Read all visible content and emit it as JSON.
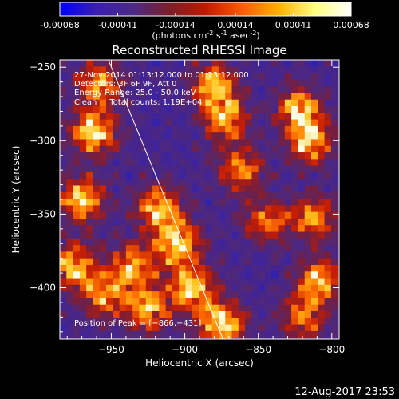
{
  "colorbar": {
    "ticks": [
      "-0.00068",
      "-0.00041",
      "-0.00014",
      "0.00014",
      "0.00041",
      "0.00068"
    ],
    "tick_values": [
      -0.00068,
      -0.00041,
      -0.00014,
      0.00014,
      0.00041,
      0.00068
    ],
    "units_prefix": "(photons cm",
    "units_exp1": "-2",
    "units_mid1": " s",
    "units_exp2": "-1",
    "units_mid2": " asec",
    "units_exp3": "-2",
    "units_suffix": ")",
    "colors": [
      "#0000ff",
      "#3a1fb0",
      "#4b2a85",
      "#7a1f2a",
      "#c01800",
      "#ff5a00",
      "#ffb000",
      "#ffff80",
      "#ffffff"
    ]
  },
  "chart_data": {
    "type": "heatmap",
    "title": "Reconstructed RHESSI Image",
    "xlabel": "Heliocentric X (arcsec)",
    "ylabel": "Heliocentric Y (arcsec)",
    "xlim": [
      -985,
      -795
    ],
    "ylim": [
      -435,
      -245
    ],
    "xticks": [
      -950,
      -900,
      -850,
      -800
    ],
    "xtick_labels": [
      "−950",
      "−900",
      "−850",
      "−800"
    ],
    "yticks": [
      -250,
      -300,
      -350,
      -400
    ],
    "ytick_labels": [
      "−250",
      "−300",
      "−350",
      "−400"
    ],
    "value_range": [
      -0.00068,
      0.00068
    ],
    "peak": {
      "x": -866,
      "y": -431
    },
    "limb_line": {
      "x1": -952,
      "y1": -245,
      "x2": -874,
      "y2": -435
    },
    "bright_features": [
      {
        "x": -958,
        "y": -262,
        "level": 0.8
      },
      {
        "x": -962,
        "y": -295,
        "level": 0.95
      },
      {
        "x": -970,
        "y": -340,
        "level": 0.9
      },
      {
        "x": -975,
        "y": -385,
        "level": 0.85
      },
      {
        "x": -955,
        "y": -405,
        "level": 0.75
      },
      {
        "x": -918,
        "y": -345,
        "level": 0.9
      },
      {
        "x": -905,
        "y": -370,
        "level": 0.95
      },
      {
        "x": -935,
        "y": -385,
        "level": 0.8
      },
      {
        "x": -925,
        "y": -415,
        "level": 0.85
      },
      {
        "x": -895,
        "y": -400,
        "level": 0.9
      },
      {
        "x": -875,
        "y": -425,
        "level": 1.0
      },
      {
        "x": -880,
        "y": -262,
        "level": 0.85
      },
      {
        "x": -872,
        "y": -285,
        "level": 0.8
      },
      {
        "x": -862,
        "y": -320,
        "level": 0.75
      },
      {
        "x": -845,
        "y": -355,
        "level": 0.7
      },
      {
        "x": -822,
        "y": -278,
        "level": 0.8
      },
      {
        "x": -815,
        "y": -300,
        "level": 0.9
      },
      {
        "x": -812,
        "y": -352,
        "level": 0.75
      },
      {
        "x": -808,
        "y": -395,
        "level": 0.85
      },
      {
        "x": -820,
        "y": -420,
        "level": 0.7
      }
    ]
  },
  "annotations": {
    "line1": "27-Nov-2014 01:13:12.000 to 01:23:12.000",
    "line2": "Detectors: 3F 6F 9F, Att 0",
    "line3": "Energy Range: 25.0 - 50.0 keV",
    "line4": "Clean     Total counts: 1.19E+04",
    "peak": "Position of Peak = [−866,−431]"
  },
  "footer": {
    "timestamp": "12-Aug-2017 23:53"
  }
}
